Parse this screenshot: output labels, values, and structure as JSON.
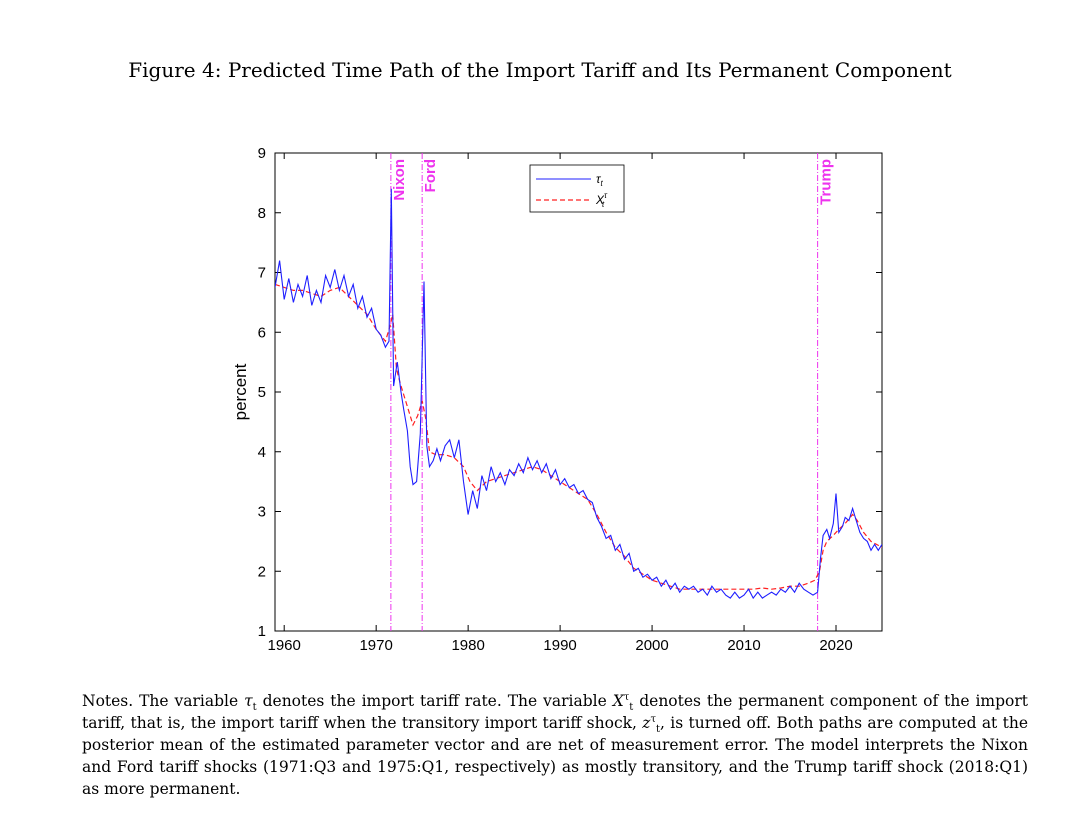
{
  "title": "Figure 4: Predicted Time Path of the Import Tariff and Its Permanent Component",
  "colors": {
    "tau": "#1f1fff",
    "x_tau": "#ff2020",
    "event_lines": "#ee33ee"
  },
  "chart_data": {
    "type": "line",
    "ylabel": "percent",
    "xlabel": "",
    "xlim": [
      1959,
      2025
    ],
    "ylim": [
      1,
      9
    ],
    "x_ticks": [
      "1960",
      "1970",
      "1980",
      "1990",
      "2000",
      "2010",
      "2020"
    ],
    "y_ticks": [
      "1",
      "2",
      "3",
      "4",
      "5",
      "6",
      "7",
      "8",
      "9"
    ],
    "legend": {
      "position": "top-center",
      "entries": [
        "τt",
        "Xtτ"
      ]
    },
    "events": [
      {
        "label": "Nixon",
        "x": 1971.6
      },
      {
        "label": "Ford",
        "x": 1975.0
      },
      {
        "label": "Trump",
        "x": 2018.0
      }
    ],
    "series": [
      {
        "name": "τt",
        "style": "solid",
        "points": [
          [
            1959.0,
            6.75
          ],
          [
            1959.5,
            7.2
          ],
          [
            1960.0,
            6.55
          ],
          [
            1960.5,
            6.9
          ],
          [
            1961.0,
            6.5
          ],
          [
            1961.5,
            6.8
          ],
          [
            1962.0,
            6.6
          ],
          [
            1962.5,
            6.95
          ],
          [
            1963.0,
            6.45
          ],
          [
            1963.5,
            6.7
          ],
          [
            1964.0,
            6.5
          ],
          [
            1964.5,
            6.95
          ],
          [
            1965.0,
            6.75
          ],
          [
            1965.5,
            7.05
          ],
          [
            1966.0,
            6.7
          ],
          [
            1966.5,
            6.95
          ],
          [
            1967.0,
            6.6
          ],
          [
            1967.5,
            6.8
          ],
          [
            1968.0,
            6.4
          ],
          [
            1968.5,
            6.6
          ],
          [
            1969.0,
            6.25
          ],
          [
            1969.5,
            6.4
          ],
          [
            1970.0,
            6.05
          ],
          [
            1970.5,
            5.95
          ],
          [
            1971.0,
            5.75
          ],
          [
            1971.4,
            5.85
          ],
          [
            1971.65,
            8.4
          ],
          [
            1971.9,
            5.1
          ],
          [
            1972.3,
            5.5
          ],
          [
            1972.7,
            5.0
          ],
          [
            1973.0,
            4.7
          ],
          [
            1973.4,
            4.35
          ],
          [
            1973.7,
            3.75
          ],
          [
            1974.0,
            3.45
          ],
          [
            1974.4,
            3.5
          ],
          [
            1974.8,
            4.3
          ],
          [
            1975.2,
            6.85
          ],
          [
            1975.5,
            4.1
          ],
          [
            1975.8,
            3.75
          ],
          [
            1976.2,
            3.85
          ],
          [
            1976.6,
            4.05
          ],
          [
            1977.0,
            3.85
          ],
          [
            1977.5,
            4.1
          ],
          [
            1978.0,
            4.2
          ],
          [
            1978.5,
            3.9
          ],
          [
            1979.0,
            4.2
          ],
          [
            1979.5,
            3.5
          ],
          [
            1980.0,
            2.95
          ],
          [
            1980.5,
            3.35
          ],
          [
            1981.0,
            3.05
          ],
          [
            1981.5,
            3.6
          ],
          [
            1982.0,
            3.35
          ],
          [
            1982.5,
            3.75
          ],
          [
            1983.0,
            3.5
          ],
          [
            1983.5,
            3.65
          ],
          [
            1984.0,
            3.45
          ],
          [
            1984.5,
            3.7
          ],
          [
            1985.0,
            3.6
          ],
          [
            1985.5,
            3.8
          ],
          [
            1986.0,
            3.65
          ],
          [
            1986.5,
            3.9
          ],
          [
            1987.0,
            3.7
          ],
          [
            1987.5,
            3.85
          ],
          [
            1988.0,
            3.65
          ],
          [
            1988.5,
            3.8
          ],
          [
            1989.0,
            3.55
          ],
          [
            1989.5,
            3.7
          ],
          [
            1990.0,
            3.45
          ],
          [
            1990.5,
            3.55
          ],
          [
            1991.0,
            3.4
          ],
          [
            1991.5,
            3.45
          ],
          [
            1992.0,
            3.3
          ],
          [
            1992.5,
            3.35
          ],
          [
            1993.0,
            3.2
          ],
          [
            1993.5,
            3.15
          ],
          [
            1994.0,
            2.9
          ],
          [
            1994.5,
            2.75
          ],
          [
            1995.0,
            2.55
          ],
          [
            1995.5,
            2.6
          ],
          [
            1996.0,
            2.35
          ],
          [
            1996.5,
            2.45
          ],
          [
            1997.0,
            2.2
          ],
          [
            1997.5,
            2.3
          ],
          [
            1998.0,
            2.0
          ],
          [
            1998.5,
            2.05
          ],
          [
            1999.0,
            1.9
          ],
          [
            1999.5,
            1.95
          ],
          [
            2000.0,
            1.85
          ],
          [
            2000.5,
            1.9
          ],
          [
            2001.0,
            1.75
          ],
          [
            2001.5,
            1.85
          ],
          [
            2002.0,
            1.7
          ],
          [
            2002.5,
            1.8
          ],
          [
            2003.0,
            1.65
          ],
          [
            2003.5,
            1.75
          ],
          [
            2004.0,
            1.7
          ],
          [
            2004.5,
            1.75
          ],
          [
            2005.0,
            1.65
          ],
          [
            2005.5,
            1.7
          ],
          [
            2006.0,
            1.6
          ],
          [
            2006.5,
            1.75
          ],
          [
            2007.0,
            1.65
          ],
          [
            2007.5,
            1.7
          ],
          [
            2008.0,
            1.6
          ],
          [
            2008.5,
            1.55
          ],
          [
            2009.0,
            1.65
          ],
          [
            2009.5,
            1.55
          ],
          [
            2010.0,
            1.6
          ],
          [
            2010.5,
            1.7
          ],
          [
            2011.0,
            1.55
          ],
          [
            2011.5,
            1.65
          ],
          [
            2012.0,
            1.55
          ],
          [
            2012.5,
            1.6
          ],
          [
            2013.0,
            1.65
          ],
          [
            2013.5,
            1.6
          ],
          [
            2014.0,
            1.7
          ],
          [
            2014.5,
            1.65
          ],
          [
            2015.0,
            1.75
          ],
          [
            2015.5,
            1.65
          ],
          [
            2016.0,
            1.8
          ],
          [
            2016.5,
            1.7
          ],
          [
            2017.0,
            1.65
          ],
          [
            2017.5,
            1.6
          ],
          [
            2018.0,
            1.65
          ],
          [
            2018.3,
            2.2
          ],
          [
            2018.6,
            2.6
          ],
          [
            2019.0,
            2.7
          ],
          [
            2019.3,
            2.55
          ],
          [
            2019.7,
            2.8
          ],
          [
            2020.0,
            3.3
          ],
          [
            2020.3,
            2.65
          ],
          [
            2020.7,
            2.75
          ],
          [
            2021.0,
            2.9
          ],
          [
            2021.4,
            2.85
          ],
          [
            2021.8,
            3.05
          ],
          [
            2022.2,
            2.85
          ],
          [
            2022.6,
            2.65
          ],
          [
            2023.0,
            2.55
          ],
          [
            2023.4,
            2.5
          ],
          [
            2023.8,
            2.35
          ],
          [
            2024.2,
            2.45
          ],
          [
            2024.6,
            2.35
          ],
          [
            2025.0,
            2.45
          ]
        ]
      },
      {
        "name": "Xtτ",
        "style": "dashed",
        "points": [
          [
            1959.0,
            6.8
          ],
          [
            1960.0,
            6.75
          ],
          [
            1961.0,
            6.7
          ],
          [
            1962.0,
            6.7
          ],
          [
            1963.0,
            6.65
          ],
          [
            1964.0,
            6.6
          ],
          [
            1965.0,
            6.7
          ],
          [
            1966.0,
            6.75
          ],
          [
            1967.0,
            6.6
          ],
          [
            1968.0,
            6.45
          ],
          [
            1969.0,
            6.3
          ],
          [
            1970.0,
            6.05
          ],
          [
            1971.0,
            5.85
          ],
          [
            1971.5,
            6.1
          ],
          [
            1971.8,
            6.3
          ],
          [
            1972.2,
            5.4
          ],
          [
            1972.6,
            5.15
          ],
          [
            1973.0,
            4.95
          ],
          [
            1973.5,
            4.7
          ],
          [
            1974.0,
            4.45
          ],
          [
            1974.5,
            4.6
          ],
          [
            1975.0,
            4.85
          ],
          [
            1975.4,
            4.55
          ],
          [
            1975.8,
            4.0
          ],
          [
            1976.5,
            3.95
          ],
          [
            1977.5,
            3.95
          ],
          [
            1978.5,
            3.9
          ],
          [
            1979.5,
            3.75
          ],
          [
            1980.2,
            3.5
          ],
          [
            1981.0,
            3.35
          ],
          [
            1982.0,
            3.5
          ],
          [
            1983.0,
            3.55
          ],
          [
            1984.0,
            3.6
          ],
          [
            1985.0,
            3.65
          ],
          [
            1986.0,
            3.7
          ],
          [
            1987.0,
            3.75
          ],
          [
            1988.0,
            3.7
          ],
          [
            1989.0,
            3.6
          ],
          [
            1990.0,
            3.5
          ],
          [
            1991.0,
            3.4
          ],
          [
            1992.0,
            3.3
          ],
          [
            1993.0,
            3.2
          ],
          [
            1994.0,
            2.95
          ],
          [
            1995.0,
            2.65
          ],
          [
            1996.0,
            2.4
          ],
          [
            1997.0,
            2.25
          ],
          [
            1998.0,
            2.05
          ],
          [
            1999.0,
            1.95
          ],
          [
            2000.0,
            1.85
          ],
          [
            2001.0,
            1.8
          ],
          [
            2002.0,
            1.75
          ],
          [
            2003.0,
            1.7
          ],
          [
            2004.0,
            1.7
          ],
          [
            2005.0,
            1.7
          ],
          [
            2006.0,
            1.7
          ],
          [
            2007.0,
            1.7
          ],
          [
            2008.0,
            1.7
          ],
          [
            2009.0,
            1.7
          ],
          [
            2010.0,
            1.7
          ],
          [
            2011.0,
            1.7
          ],
          [
            2012.0,
            1.72
          ],
          [
            2013.0,
            1.7
          ],
          [
            2014.0,
            1.72
          ],
          [
            2015.0,
            1.75
          ],
          [
            2016.0,
            1.75
          ],
          [
            2017.0,
            1.8
          ],
          [
            2017.7,
            1.85
          ],
          [
            2018.2,
            2.0
          ],
          [
            2018.6,
            2.35
          ],
          [
            2019.0,
            2.5
          ],
          [
            2019.7,
            2.6
          ],
          [
            2020.3,
            2.7
          ],
          [
            2021.0,
            2.8
          ],
          [
            2021.8,
            2.95
          ],
          [
            2022.3,
            2.85
          ],
          [
            2023.0,
            2.65
          ],
          [
            2023.8,
            2.5
          ],
          [
            2025.0,
            2.4
          ]
        ]
      }
    ]
  },
  "notes": {
    "p1": "Notes. The variable ",
    "tau": "τ",
    "tau_sub": "t",
    "p2": " denotes the import tariff rate. The variable ",
    "x": "X",
    "x_sub": "t",
    "x_sup": "τ",
    "p3": " denotes the permanent component of the import tariff, that is, the import tariff when the transitory import tariff shock, ",
    "z": "z",
    "z_sub": "t",
    "z_sup": "τ",
    "p4": ", is turned off. Both paths are computed at the posterior mean of the estimated parameter vector and are net of measurement error. The model interprets the Nixon and Ford tariff shocks (1971:Q3 and 1975:Q1, respectively) as mostly transitory, and the Trump tariff shock (2018:Q1) as more permanent."
  }
}
